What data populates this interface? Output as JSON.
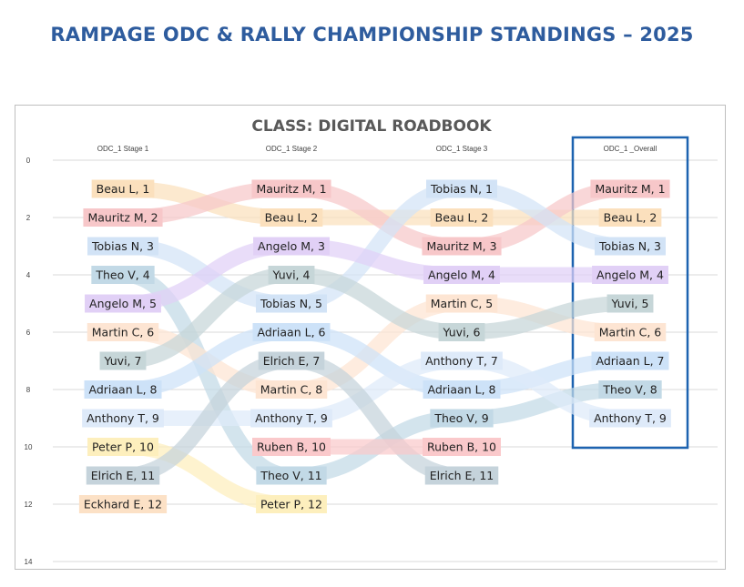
{
  "page": {
    "title": "RAMPAGE ODC & RALLY CHAMPIONSHIP STANDINGS – 2025"
  },
  "chart_data": {
    "type": "bump",
    "title": "CLASS: DIGITAL ROADBOOK",
    "xlabel": "",
    "ylabel": "",
    "stages": [
      "ODC_1 Stage 1",
      "ODC_1 Stage 2",
      "ODC_1 Stage 3",
      "ODC_1 _Overall"
    ],
    "highlighted_stage": "ODC_1 _Overall",
    "y_ticks": [
      0,
      2,
      4,
      6,
      8,
      10,
      12,
      14
    ],
    "ylim": [
      0,
      14
    ],
    "y_inverted": true,
    "grid": true,
    "series": [
      {
        "name": "Beau L",
        "color": "#fbe0bd",
        "positions": [
          1,
          2,
          2,
          2
        ]
      },
      {
        "name": "Mauritz M",
        "color": "#f7c7c9",
        "positions": [
          2,
          1,
          3,
          1
        ]
      },
      {
        "name": "Tobias N",
        "color": "#d2e3f6",
        "positions": [
          3,
          5,
          1,
          3
        ]
      },
      {
        "name": "Theo V",
        "color": "#c2d9e6",
        "positions": [
          4,
          11,
          9,
          8
        ]
      },
      {
        "name": "Angelo M",
        "color": "#e1d0f6",
        "positions": [
          5,
          3,
          4,
          4
        ]
      },
      {
        "name": "Martin C",
        "color": "#fde5d3",
        "positions": [
          6,
          8,
          5,
          6
        ]
      },
      {
        "name": "Yuvi",
        "color": "#c6d6d8",
        "positions": [
          7,
          4,
          6,
          5
        ]
      },
      {
        "name": "Adriaan L",
        "color": "#cde2f8",
        "positions": [
          8,
          6,
          8,
          7
        ]
      },
      {
        "name": "Anthony T",
        "color": "#deeaf9",
        "positions": [
          9,
          9,
          7,
          9
        ]
      },
      {
        "name": "Peter P",
        "color": "#fdefbd",
        "positions": [
          10,
          12,
          null,
          null
        ]
      },
      {
        "name": "Elrich E",
        "color": "#c5d3db",
        "positions": [
          11,
          7,
          11,
          null
        ]
      },
      {
        "name": "Eckhard E",
        "color": "#fce1c6",
        "positions": [
          12,
          null,
          null,
          null
        ]
      },
      {
        "name": "Ruben B",
        "color": "#fac9cb",
        "positions": [
          null,
          10,
          10,
          null
        ]
      }
    ]
  }
}
